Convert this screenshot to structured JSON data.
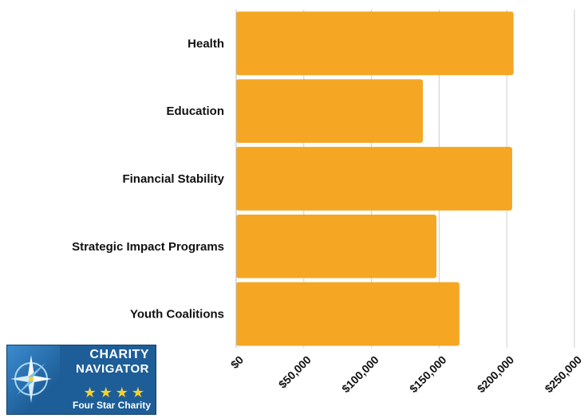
{
  "chart_data": {
    "type": "bar",
    "orientation": "horizontal",
    "categories": [
      "Health",
      "Education",
      "Financial Stability",
      "Strategic Impact Programs",
      "Youth Coalitions"
    ],
    "values": [
      205000,
      138000,
      204000,
      148000,
      165000
    ],
    "xlim": [
      0,
      250000
    ],
    "xticks": [
      0,
      50000,
      100000,
      150000,
      200000,
      250000
    ],
    "xtick_labels": [
      "$0",
      "$50,000",
      "$100,000",
      "$150,000",
      "$200,000",
      "$250,000"
    ],
    "bar_color": "#f5a623",
    "grid": "vertical",
    "title": "",
    "xlabel": "",
    "ylabel": ""
  },
  "badge": {
    "line1": "CHARITY",
    "line2": "NAVIGATOR",
    "stars": "★★★★",
    "footer": "Four Star Charity",
    "compass_icon": "compass-icon"
  }
}
